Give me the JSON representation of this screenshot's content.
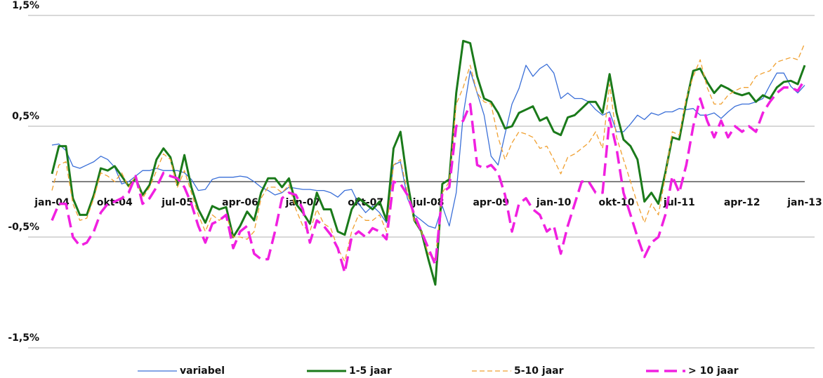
{
  "chart_data": {
    "type": "line",
    "categories": [
      "jan-04",
      null,
      null,
      null,
      null,
      null,
      null,
      null,
      null,
      "okt-04",
      null,
      null,
      null,
      null,
      null,
      null,
      null,
      null,
      "jul-05",
      null,
      null,
      null,
      null,
      null,
      null,
      null,
      null,
      "apr-06",
      null,
      null,
      null,
      null,
      null,
      null,
      null,
      null,
      "jan-07",
      null,
      null,
      null,
      null,
      null,
      null,
      null,
      null,
      "okt-07",
      null,
      null,
      null,
      null,
      null,
      null,
      null,
      null,
      "jul-08",
      null,
      null,
      null,
      null,
      null,
      null,
      null,
      null,
      "apr-09",
      null,
      null,
      null,
      null,
      null,
      null,
      null,
      null,
      "jan-10",
      null,
      null,
      null,
      null,
      null,
      null,
      null,
      null,
      "okt-10",
      null,
      null,
      null,
      null,
      null,
      null,
      null,
      null,
      "jul-11",
      null,
      null,
      null,
      null,
      null,
      null,
      null,
      null,
      "apr-12",
      null,
      null,
      null,
      null,
      null,
      null,
      null,
      null,
      "jan-13"
    ],
    "ylim": [
      -1.5,
      1.5
    ],
    "yticks": [
      {
        "value": -1.5,
        "label": "-1,5%"
      },
      {
        "value": -0.5,
        "label": "-0,5%"
      },
      {
        "value": 0.5,
        "label": "0,5%"
      },
      {
        "value": 1.5,
        "label": "1,5%"
      }
    ],
    "grid": true,
    "legend": "bottom",
    "series": [
      {
        "name": "variabel",
        "color": "#3a6fd8",
        "style": "solid",
        "values": [
          0.33,
          0.34,
          0.28,
          0.14,
          0.12,
          0.15,
          0.18,
          0.23,
          0.2,
          0.13,
          -0.02,
          0.0,
          0.05,
          0.1,
          0.1,
          0.12,
          0.1,
          0.1,
          0.1,
          0.08,
          0.02,
          -0.08,
          -0.07,
          0.02,
          0.04,
          0.04,
          0.04,
          0.05,
          0.04,
          0.0,
          -0.05,
          -0.08,
          -0.12,
          -0.1,
          -0.05,
          -0.06,
          -0.07,
          -0.07,
          -0.08,
          -0.08,
          -0.1,
          -0.14,
          -0.08,
          -0.07,
          -0.2,
          -0.28,
          -0.22,
          -0.28,
          -0.37,
          0.15,
          0.18,
          -0.15,
          -0.3,
          -0.35,
          -0.4,
          -0.42,
          -0.22,
          -0.4,
          -0.1,
          0.6,
          1.0,
          0.8,
          0.6,
          0.23,
          0.15,
          0.43,
          0.7,
          0.84,
          1.05,
          0.95,
          1.02,
          1.06,
          0.98,
          0.75,
          0.8,
          0.75,
          0.75,
          0.72,
          0.65,
          0.6,
          0.63,
          0.45,
          0.45,
          0.52,
          0.6,
          0.56,
          0.62,
          0.6,
          0.63,
          0.63,
          0.66,
          0.65,
          0.66,
          0.6,
          0.6,
          0.62,
          0.57,
          0.63,
          0.68,
          0.7,
          0.7,
          0.72,
          0.75,
          0.87,
          0.98,
          0.98,
          0.86,
          0.8,
          0.87
        ]
      },
      {
        "name": "1-5 jaar",
        "color": "#1a7a1a",
        "style": "solid",
        "values": [
          0.07,
          0.32,
          0.32,
          -0.15,
          -0.3,
          -0.3,
          -0.12,
          0.12,
          0.1,
          0.14,
          0.05,
          -0.04,
          0.03,
          -0.12,
          -0.03,
          0.2,
          0.3,
          0.22,
          -0.03,
          0.24,
          -0.05,
          -0.25,
          -0.37,
          -0.22,
          -0.25,
          -0.23,
          -0.5,
          -0.4,
          -0.27,
          -0.35,
          -0.1,
          0.03,
          0.03,
          -0.05,
          0.03,
          -0.2,
          -0.28,
          -0.38,
          -0.1,
          -0.25,
          -0.25,
          -0.45,
          -0.48,
          -0.25,
          -0.15,
          -0.2,
          -0.25,
          -0.18,
          -0.35,
          0.3,
          0.45,
          0.0,
          -0.35,
          -0.45,
          -0.7,
          -0.93,
          -0.02,
          0.02,
          0.8,
          1.27,
          1.25,
          0.95,
          0.75,
          0.72,
          0.62,
          0.48,
          0.5,
          0.62,
          0.65,
          0.68,
          0.55,
          0.58,
          0.45,
          0.42,
          0.58,
          0.6,
          0.66,
          0.72,
          0.72,
          0.62,
          0.97,
          0.62,
          0.38,
          0.32,
          0.2,
          -0.18,
          -0.1,
          -0.2,
          0.08,
          0.4,
          0.38,
          0.72,
          1.0,
          1.02,
          0.9,
          0.8,
          0.87,
          0.84,
          0.8,
          0.78,
          0.8,
          0.72,
          0.78,
          0.75,
          0.85,
          0.9,
          0.91,
          0.88,
          1.05
        ]
      },
      {
        "name": "5-10 jaar",
        "color": "#f0a030",
        "style": "dashed",
        "values": [
          -0.08,
          0.15,
          0.18,
          -0.2,
          -0.35,
          -0.33,
          -0.15,
          0.08,
          0.05,
          0.0,
          0.08,
          -0.05,
          0.05,
          -0.15,
          -0.05,
          0.1,
          0.25,
          0.2,
          -0.05,
          0.1,
          -0.1,
          -0.3,
          -0.45,
          -0.3,
          -0.35,
          -0.3,
          -0.5,
          -0.5,
          -0.52,
          -0.45,
          -0.15,
          -0.05,
          -0.05,
          -0.1,
          -0.03,
          -0.25,
          -0.4,
          -0.45,
          -0.25,
          -0.38,
          -0.42,
          -0.6,
          -0.72,
          -0.45,
          -0.3,
          -0.35,
          -0.35,
          -0.3,
          -0.45,
          0.15,
          0.2,
          -0.1,
          -0.35,
          -0.45,
          -0.65,
          -0.7,
          -0.1,
          0.0,
          0.7,
          0.85,
          1.05,
          0.8,
          0.72,
          0.7,
          0.4,
          0.2,
          0.35,
          0.45,
          0.43,
          0.4,
          0.3,
          0.32,
          0.2,
          0.07,
          0.22,
          0.25,
          0.3,
          0.35,
          0.45,
          0.3,
          0.88,
          0.4,
          0.2,
          0.0,
          -0.2,
          -0.37,
          -0.2,
          -0.3,
          0.05,
          0.45,
          0.42,
          0.75,
          0.95,
          1.1,
          0.85,
          0.7,
          0.7,
          0.78,
          0.82,
          0.85,
          0.85,
          0.95,
          0.98,
          1.0,
          1.08,
          1.1,
          1.12,
          1.1,
          1.25
        ]
      },
      {
        "name": "> 10 jaar",
        "color": "#f020e0",
        "style": "dashed",
        "values": [
          -0.35,
          -0.2,
          -0.2,
          -0.5,
          -0.58,
          -0.55,
          -0.45,
          -0.28,
          -0.2,
          -0.18,
          -0.15,
          -0.1,
          0.05,
          -0.2,
          -0.15,
          -0.05,
          0.08,
          0.05,
          0.03,
          -0.05,
          -0.2,
          -0.4,
          -0.55,
          -0.38,
          -0.35,
          -0.3,
          -0.6,
          -0.45,
          -0.4,
          -0.65,
          -0.7,
          -0.7,
          -0.45,
          -0.15,
          -0.1,
          -0.12,
          -0.25,
          -0.55,
          -0.35,
          -0.4,
          -0.48,
          -0.6,
          -0.82,
          -0.5,
          -0.45,
          -0.5,
          -0.42,
          -0.45,
          -0.52,
          0.0,
          -0.02,
          -0.12,
          -0.3,
          -0.45,
          -0.6,
          -0.75,
          -0.1,
          -0.05,
          0.5,
          0.55,
          0.7,
          0.15,
          0.12,
          0.15,
          0.08,
          -0.12,
          -0.45,
          -0.2,
          -0.15,
          -0.25,
          -0.3,
          -0.45,
          -0.4,
          -0.65,
          -0.4,
          -0.2,
          0.0,
          0.0,
          -0.1,
          -0.1,
          0.57,
          0.3,
          -0.1,
          -0.3,
          -0.5,
          -0.68,
          -0.55,
          -0.5,
          -0.3,
          0.05,
          -0.1,
          0.15,
          0.5,
          0.75,
          0.55,
          0.4,
          0.55,
          0.4,
          0.5,
          0.45,
          0.5,
          0.45,
          0.62,
          0.72,
          0.8,
          0.85,
          0.85,
          0.82,
          0.92
        ]
      }
    ]
  }
}
